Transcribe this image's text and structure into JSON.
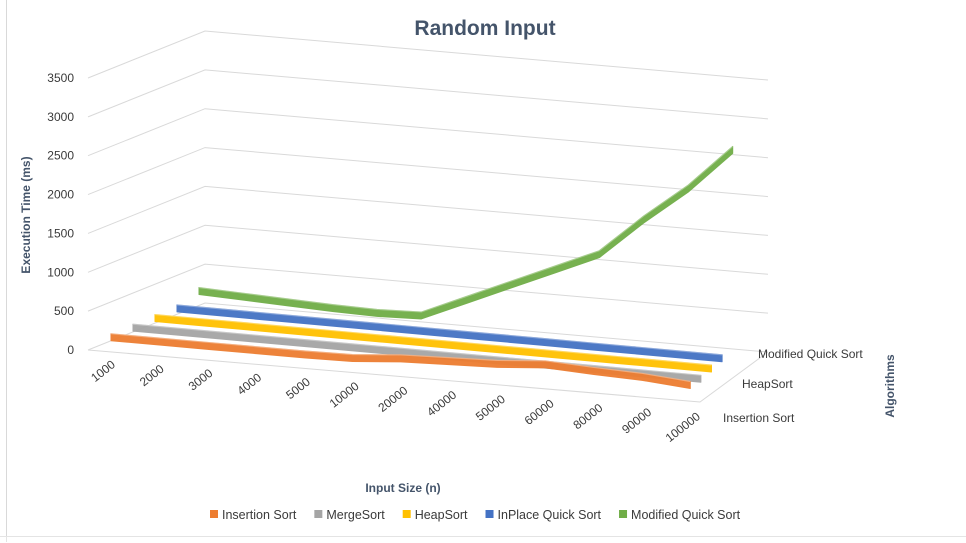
{
  "chart_data": {
    "type": "line",
    "title": "Random Input",
    "xlabel": "Input Size (n)",
    "ylabel": "Execution Time (ms)",
    "zlabel": "Algorithms",
    "categories": [
      "1000",
      "2000",
      "3000",
      "4000",
      "5000",
      "10000",
      "20000",
      "40000",
      "50000",
      "60000",
      "80000",
      "90000",
      "100000"
    ],
    "y_ticks": [
      "0",
      "500",
      "1000",
      "1500",
      "2000",
      "2500",
      "3000",
      "3500"
    ],
    "ylim": [
      0,
      3500
    ],
    "depth_labels": [
      "Insertion Sort",
      "HeapSort",
      "Modified Quick Sort"
    ],
    "grid": true,
    "legend_position": "bottom",
    "series": [
      {
        "name": "Insertion Sort",
        "color": "#ed7d31",
        "values": [
          0,
          0,
          0,
          0,
          0,
          10,
          60,
          80,
          100,
          150,
          120,
          100,
          50
        ]
      },
      {
        "name": "MergeSort",
        "color": "#a5a5a5",
        "values": [
          0,
          0,
          0,
          0,
          0,
          0,
          0,
          0,
          0,
          0,
          0,
          0,
          0
        ]
      },
      {
        "name": "HeapSort",
        "color": "#ffc000",
        "values": [
          0,
          0,
          0,
          0,
          0,
          0,
          0,
          0,
          0,
          0,
          0,
          0,
          0
        ]
      },
      {
        "name": "InPlace Quick Sort",
        "color": "#4472c4",
        "values": [
          0,
          0,
          0,
          0,
          0,
          0,
          0,
          0,
          0,
          0,
          0,
          0,
          0
        ]
      },
      {
        "name": "Modified Quick Sort",
        "color": "#70ad47",
        "values": [
          100,
          80,
          60,
          40,
          30,
          50,
          300,
          550,
          800,
          1050,
          1550,
          2000,
          2550
        ]
      }
    ]
  }
}
